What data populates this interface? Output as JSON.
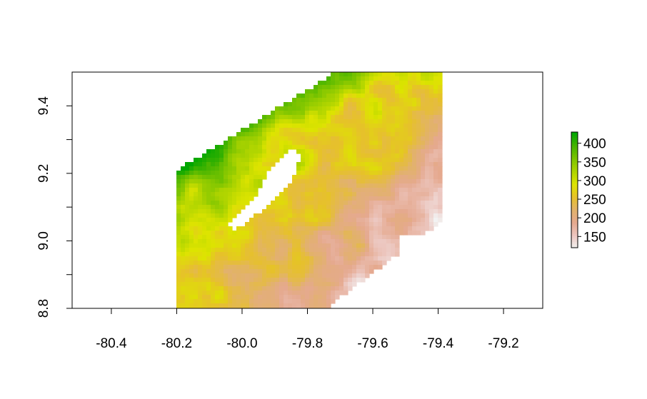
{
  "chart_data": {
    "type": "heatmap",
    "title": "",
    "xlabel": "",
    "ylabel": "",
    "xlim": [
      -80.52,
      -79.08
    ],
    "ylim": [
      8.8,
      9.5
    ],
    "x_ticks": [
      -80.4,
      -80.2,
      -80.0,
      -79.8,
      -79.6,
      -79.4,
      -79.2
    ],
    "x_tick_labels": [
      "-80.4",
      "-80.2",
      "-80.0",
      "-79.8",
      "-79.6",
      "-79.4",
      "-79.2"
    ],
    "y_ticks": [
      8.8,
      9.0,
      9.2,
      9.4
    ],
    "y_tick_labels": [
      "8.8",
      "9.0",
      "9.2",
      "9.4"
    ],
    "grid": false,
    "raster_extent": {
      "xmin": -80.2,
      "xmax": -79.4,
      "ymin": 8.8,
      "ymax": 9.5
    },
    "value_range": [
      120,
      430
    ],
    "legend": {
      "placement": "right",
      "ticks": [
        400,
        350,
        300,
        250,
        200,
        150
      ],
      "tick_labels": [
        "400",
        "350",
        "300",
        "250",
        "200",
        "150"
      ],
      "palette": [
        "#f2f2f2",
        "#ecc7c0",
        "#e5a98f",
        "#e2b26b",
        "#e6c12a",
        "#dde400",
        "#aed400",
        "#7cc400",
        "#45b400",
        "#00a600"
      ]
    }
  }
}
